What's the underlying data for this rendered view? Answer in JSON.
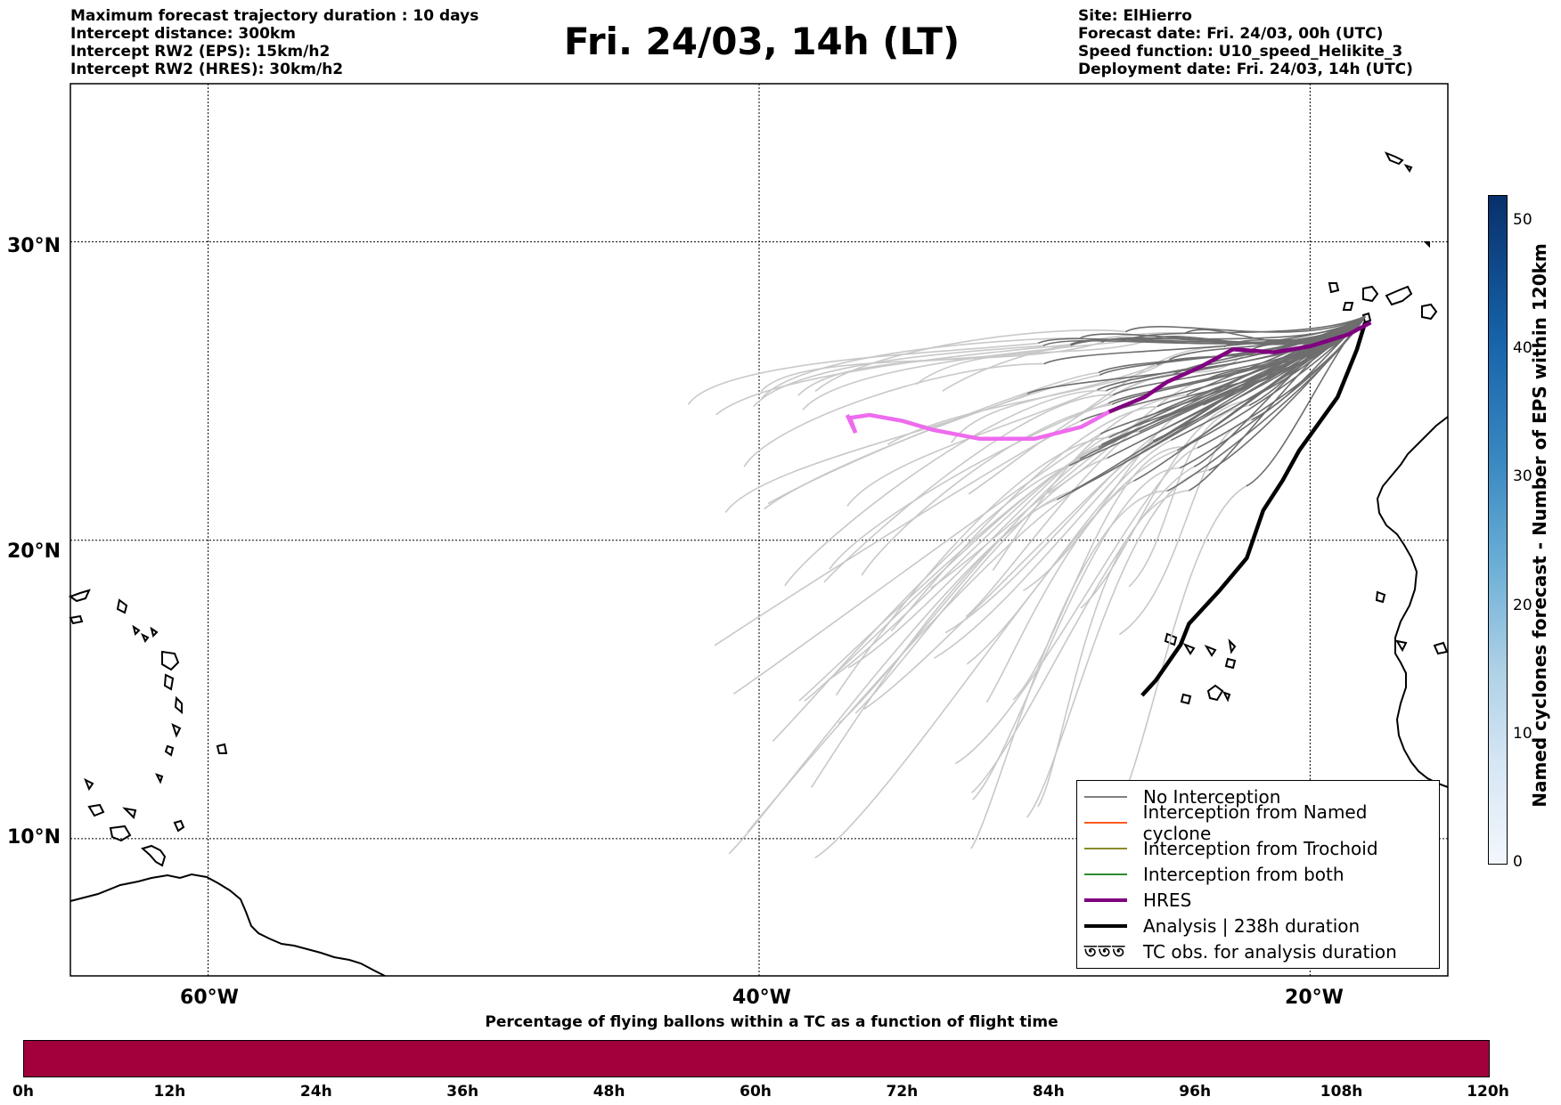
{
  "header": {
    "left_lines": [
      "Maximum forecast trajectory duration : 10 days",
      "Intercept distance: 300km",
      "Intercept RW2 (EPS):  15km/h2",
      "Intercept RW2 (HRES): 30km/h2"
    ],
    "title": "Fri. 24/03, 14h (LT)",
    "right_lines": [
      "Site: ElHierro",
      "Forecast date: Fri. 24/03, 00h (UTC)",
      "Speed function: U10_speed_Helikite_3",
      "Deployment date: Fri. 24/03, 14h (UTC)"
    ]
  },
  "map": {
    "lat_labels": [
      "30°N",
      "20°N",
      "10°N"
    ],
    "lon_labels": [
      "60°W",
      "40°W",
      "20°W"
    ],
    "lat_values": [
      30,
      20,
      10
    ],
    "lon_values": [
      -60,
      -40,
      -20
    ],
    "extent": {
      "lon_min": -65,
      "lon_max": -15,
      "lat_min": 5.4,
      "lat_max": 35.3
    },
    "site": {
      "name": "ElHierro",
      "lon": -18,
      "lat": 27.5
    },
    "analysis_track": [
      [
        -18,
        27.3
      ],
      [
        -18.3,
        26.4
      ],
      [
        -19,
        24.8
      ],
      [
        -20.4,
        23
      ],
      [
        -21,
        22
      ],
      [
        -21.7,
        21
      ],
      [
        -22.3,
        19.4
      ],
      [
        -23.3,
        18.3
      ],
      [
        -24.4,
        17.2
      ],
      [
        -24.7,
        16.5
      ],
      [
        -25.6,
        15.3
      ],
      [
        -26.1,
        14.8
      ]
    ],
    "hres_track": [
      [
        -17.8,
        27.3
      ],
      [
        -18.6,
        26.9
      ],
      [
        -20,
        26.5
      ],
      [
        -21.3,
        26.3
      ],
      [
        -22.8,
        26.4
      ],
      [
        -23.2,
        26.2
      ],
      [
        -24,
        25.8
      ],
      [
        -25.2,
        25.3
      ],
      [
        -26,
        24.8
      ],
      [
        -27.3,
        24.3
      ]
    ],
    "hres_pink_track": [
      [
        -27.3,
        24.3
      ],
      [
        -28.3,
        23.8
      ],
      [
        -30,
        23.4
      ],
      [
        -32,
        23.4
      ],
      [
        -33.7,
        23.7
      ],
      [
        -34.8,
        24
      ],
      [
        -36,
        24.2
      ],
      [
        -36.7,
        24.1
      ],
      [
        -36.5,
        23.6
      ],
      [
        -36.8,
        24.2
      ]
    ]
  },
  "legend": {
    "items": [
      {
        "label": "No Interception",
        "color": "#7f7f7f",
        "kind": "thin"
      },
      {
        "label": "Interception from Named cyclone",
        "color": "#ff5a1f",
        "kind": "thin"
      },
      {
        "label": "Interception from Trochoid",
        "color": "#8b8b2b",
        "kind": "thin"
      },
      {
        "label": "Interception from both",
        "color": "#2e8b2e",
        "kind": "thin"
      },
      {
        "label": "HRES",
        "color": "#800080",
        "kind": "thick"
      },
      {
        "label": "Analysis | 238h duration",
        "color": "#000000",
        "kind": "thick"
      },
      {
        "label": "TC obs. for analysis duration",
        "color": "#000000",
        "kind": "symbol",
        "symbol": "ত ত ত"
      }
    ]
  },
  "colorbar_vertical": {
    "label": "Named cyclones forecast - Number of EPS within 120km",
    "ticks": [
      "0",
      "10",
      "20",
      "30",
      "40",
      "50"
    ],
    "max": 52
  },
  "colorbar_horizontal": {
    "title": "Percentage of flying ballons within a TC as a function of flight time",
    "ticks": [
      "0h",
      "12h",
      "24h",
      "36h",
      "48h",
      "60h",
      "72h",
      "84h",
      "96h",
      "108h",
      "120h"
    ],
    "color": "#a1003c"
  }
}
